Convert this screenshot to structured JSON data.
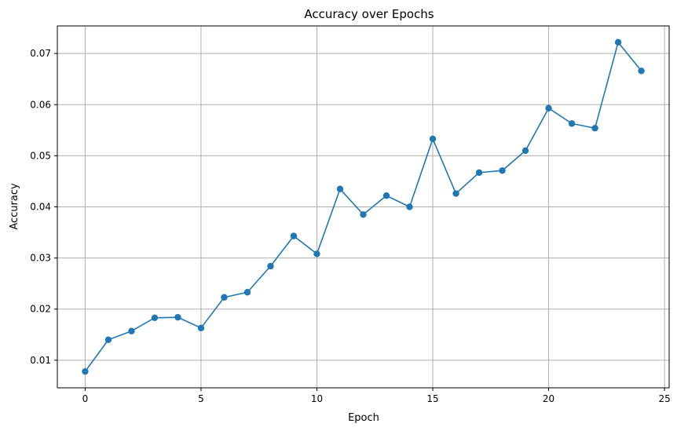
{
  "chart_data": {
    "type": "line",
    "title": "Accuracy over Epochs",
    "xlabel": "Epoch",
    "ylabel": "Accuracy",
    "x": [
      0,
      1,
      2,
      3,
      4,
      5,
      6,
      7,
      8,
      9,
      10,
      11,
      12,
      13,
      14,
      15,
      16,
      17,
      18,
      19,
      20,
      21,
      22,
      23,
      24
    ],
    "series": [
      {
        "values": [
          0.0078,
          0.014,
          0.0157,
          0.0183,
          0.0184,
          0.0163,
          0.0223,
          0.0233,
          0.0284,
          0.0343,
          0.0308,
          0.0435,
          0.0385,
          0.0422,
          0.04,
          0.0533,
          0.0426,
          0.0467,
          0.0471,
          0.051,
          0.0593,
          0.0563,
          0.0554,
          0.0722,
          0.0666
        ],
        "color": "#1f77b4",
        "marker": "circle"
      }
    ],
    "xlim": [
      -1.2,
      25.2
    ],
    "ylim": [
      0.0046,
      0.0754
    ],
    "xticks": [
      0,
      5,
      10,
      15,
      20,
      25
    ],
    "xtick_labels": [
      "0",
      "5",
      "10",
      "15",
      "20",
      "25"
    ],
    "yticks": [
      0.01,
      0.02,
      0.03,
      0.04,
      0.05,
      0.06,
      0.07
    ],
    "ytick_labels": [
      "0.01",
      "0.02",
      "0.03",
      "0.04",
      "0.05",
      "0.06",
      "0.07"
    ],
    "grid": true,
    "grid_color": "#b0b0b0"
  }
}
